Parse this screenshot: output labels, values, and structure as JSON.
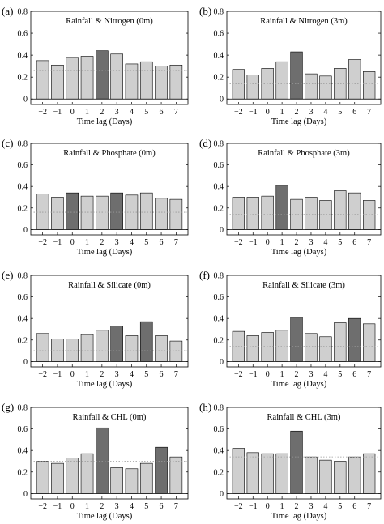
{
  "colors": {
    "normal_bar": "#cfcfcf",
    "highlight_bar": "#6e6e6e",
    "significance_line": "#9a9a9a"
  },
  "chart_data": [
    {
      "type": "bar",
      "panel_label": "(a)",
      "title": "Rainfall & Nitrogen (0m)",
      "xlabel": "Time lag (Days)",
      "categories": [
        "−2",
        "−1",
        "0",
        "1",
        "2",
        "3",
        "4",
        "5",
        "6",
        "7"
      ],
      "values": [
        0.35,
        0.31,
        0.38,
        0.39,
        0.44,
        0.41,
        0.32,
        0.34,
        0.3,
        0.31
      ],
      "highlight": [
        4
      ],
      "significance_level": 0.26,
      "ylim": [
        -0.05,
        0.8
      ],
      "yticks": [
        0,
        0.2,
        0.4,
        0.6,
        0.8
      ],
      "ytick_labels": [
        "0",
        "0.2",
        "0.4",
        "0.6",
        "0.8"
      ]
    },
    {
      "type": "bar",
      "panel_label": "(b)",
      "title": "Rainfall & Nitrogen (3m)",
      "xlabel": "Time lag (Days)",
      "categories": [
        "−2",
        "−1",
        "0",
        "1",
        "2",
        "3",
        "4",
        "5",
        "6",
        "7"
      ],
      "values": [
        0.27,
        0.22,
        0.28,
        0.34,
        0.43,
        0.23,
        0.21,
        0.28,
        0.36,
        0.25
      ],
      "highlight": [
        4
      ],
      "significance_level": 0.14,
      "ylim": [
        -0.05,
        0.8
      ],
      "yticks": [
        0,
        0.2,
        0.4,
        0.6,
        0.8
      ],
      "ytick_labels": [
        "0",
        "0.2",
        "0.4",
        "0.6",
        "0.8"
      ]
    },
    {
      "type": "bar",
      "panel_label": "(c)",
      "title": "Rainfall & Phosphate (0m)",
      "xlabel": "Time lag (Days)",
      "categories": [
        "−2",
        "−1",
        "0",
        "1",
        "2",
        "3",
        "4",
        "5",
        "6",
        "7"
      ],
      "values": [
        0.33,
        0.3,
        0.34,
        0.31,
        0.31,
        0.34,
        0.32,
        0.34,
        0.29,
        0.28
      ],
      "highlight": [
        2,
        5
      ],
      "significance_level": 0.16,
      "ylim": [
        -0.05,
        0.8
      ],
      "yticks": [
        0,
        0.2,
        0.4,
        0.6,
        0.8
      ],
      "ytick_labels": [
        "0",
        "0.2",
        "0.4",
        "0.6",
        "0.8"
      ]
    },
    {
      "type": "bar",
      "panel_label": "(d)",
      "title": "Rainfall & Phosphate (3m)",
      "xlabel": "Time lag (Days)",
      "categories": [
        "−2",
        "−1",
        "0",
        "1",
        "2",
        "3",
        "4",
        "5",
        "6",
        "7"
      ],
      "values": [
        0.3,
        0.3,
        0.31,
        0.41,
        0.28,
        0.3,
        0.27,
        0.36,
        0.34,
        0.27
      ],
      "highlight": [
        3
      ],
      "significance_level": 0.14,
      "ylim": [
        -0.05,
        0.8
      ],
      "yticks": [
        0,
        0.2,
        0.4,
        0.6,
        0.8
      ],
      "ytick_labels": [
        "0",
        "0.2",
        "0.4",
        "0.6",
        "0.8"
      ]
    },
    {
      "type": "bar",
      "panel_label": "(e)",
      "title": "Rainfall & Silicate (0m)",
      "xlabel": "Time lag (Days)",
      "categories": [
        "−2",
        "−1",
        "0",
        "1",
        "2",
        "3",
        "4",
        "5",
        "6",
        "7"
      ],
      "values": [
        0.26,
        0.21,
        0.21,
        0.25,
        0.29,
        0.33,
        0.24,
        0.37,
        0.24,
        0.19
      ],
      "highlight": [
        5,
        7
      ],
      "significance_level": 0.1,
      "ylim": [
        -0.05,
        0.8
      ],
      "yticks": [
        0,
        0.2,
        0.4,
        0.6,
        0.8
      ],
      "ytick_labels": [
        "0",
        "0.2",
        "0.4",
        "0.6",
        "0.8"
      ]
    },
    {
      "type": "bar",
      "panel_label": "(f)",
      "title": "Rainfall & Silicate (3m)",
      "xlabel": "Time lag (Days)",
      "categories": [
        "−2",
        "−1",
        "0",
        "1",
        "2",
        "3",
        "4",
        "5",
        "6",
        "7"
      ],
      "values": [
        0.28,
        0.24,
        0.27,
        0.29,
        0.41,
        0.26,
        0.23,
        0.36,
        0.4,
        0.35
      ],
      "highlight": [
        4,
        8
      ],
      "significance_level": 0.14,
      "ylim": [
        -0.05,
        0.8
      ],
      "yticks": [
        0,
        0.2,
        0.4,
        0.6,
        0.8
      ],
      "ytick_labels": [
        "0",
        "0.2",
        "0.4",
        "0.6",
        "0.8"
      ]
    },
    {
      "type": "bar",
      "panel_label": "(g)",
      "title": "Rainfall & CHL (0m)",
      "xlabel": "Time lag (Days)",
      "categories": [
        "−2",
        "−1",
        "0",
        "1",
        "2",
        "3",
        "4",
        "5",
        "6",
        "7"
      ],
      "values": [
        0.3,
        0.28,
        0.33,
        0.37,
        0.61,
        0.24,
        0.23,
        0.28,
        0.43,
        0.34
      ],
      "highlight": [
        4,
        8
      ],
      "significance_level": 0.3,
      "ylim": [
        -0.05,
        0.8
      ],
      "yticks": [
        0,
        0.2,
        0.4,
        0.6,
        0.8
      ],
      "ytick_labels": [
        "0",
        "0.2",
        "0.4",
        "0.6",
        "0.8"
      ]
    },
    {
      "type": "bar",
      "panel_label": "(h)",
      "title": "Rainfall & CHL (3m)",
      "xlabel": "Time lag (Days)",
      "categories": [
        "−2",
        "−1",
        "0",
        "1",
        "2",
        "3",
        "4",
        "5",
        "6",
        "7"
      ],
      "values": [
        0.42,
        0.38,
        0.37,
        0.37,
        0.58,
        0.34,
        0.31,
        0.3,
        0.34,
        0.37
      ],
      "highlight": [
        4
      ],
      "significance_level": 0.34,
      "ylim": [
        -0.05,
        0.8
      ],
      "yticks": [
        0,
        0.2,
        0.4,
        0.6,
        0.8
      ],
      "ytick_labels": [
        "0",
        "0.2",
        "0.4",
        "0.6",
        "0.8"
      ]
    }
  ]
}
